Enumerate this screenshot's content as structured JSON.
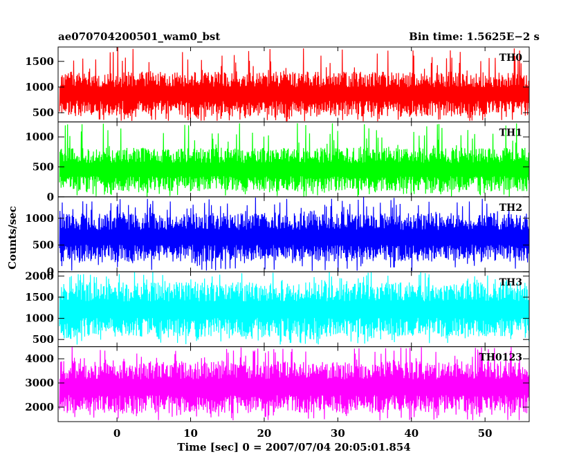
{
  "header": {
    "left_title": "ae070704200501_wam0_bst",
    "right_title": "Bin time: 1.5625E−2 s"
  },
  "chart_data": {
    "type": "line",
    "xlabel": "Time [sec] 0 = 2007/07/04 20:05:01.854",
    "ylabel": "Counts/sec",
    "xlim": [
      -8,
      56
    ],
    "x_ticks": [
      0,
      10,
      20,
      30,
      40,
      50
    ],
    "x_range": [
      -7.8,
      56.0
    ],
    "bin_time": 0.015625,
    "panels": [
      {
        "name": "TH0",
        "color": "#ff0000",
        "ylim": [
          320,
          1780
        ],
        "yticks": [
          500,
          1000,
          1500
        ],
        "typical_low": 430,
        "typical_high": 1300,
        "min": 330,
        "max": 1780
      },
      {
        "name": "TH1",
        "color": "#00ff00",
        "ylim": [
          0,
          1250
        ],
        "yticks": [
          0,
          500,
          1000
        ],
        "typical_low": 90,
        "typical_high": 820,
        "min": 0,
        "max": 1230
      },
      {
        "name": "TH2",
        "color": "#0000ff",
        "ylim": [
          0,
          1400
        ],
        "yticks": [
          0,
          500,
          1000
        ],
        "typical_low": 190,
        "typical_high": 1100,
        "min": 0,
        "max": 1400
      },
      {
        "name": "TH3",
        "color": "#00ffff",
        "ylim": [
          330,
          2100
        ],
        "yticks": [
          500,
          1000,
          1500,
          2000
        ],
        "typical_low": 560,
        "typical_high": 1850,
        "min": 380,
        "max": 2100
      },
      {
        "name": "TH0123",
        "color": "#ff00ff",
        "ylim": [
          1400,
          4500
        ],
        "yticks": [
          2000,
          3000,
          4000
        ],
        "typical_low": 1750,
        "typical_high": 3900,
        "min": 1450,
        "max": 4500
      }
    ]
  }
}
